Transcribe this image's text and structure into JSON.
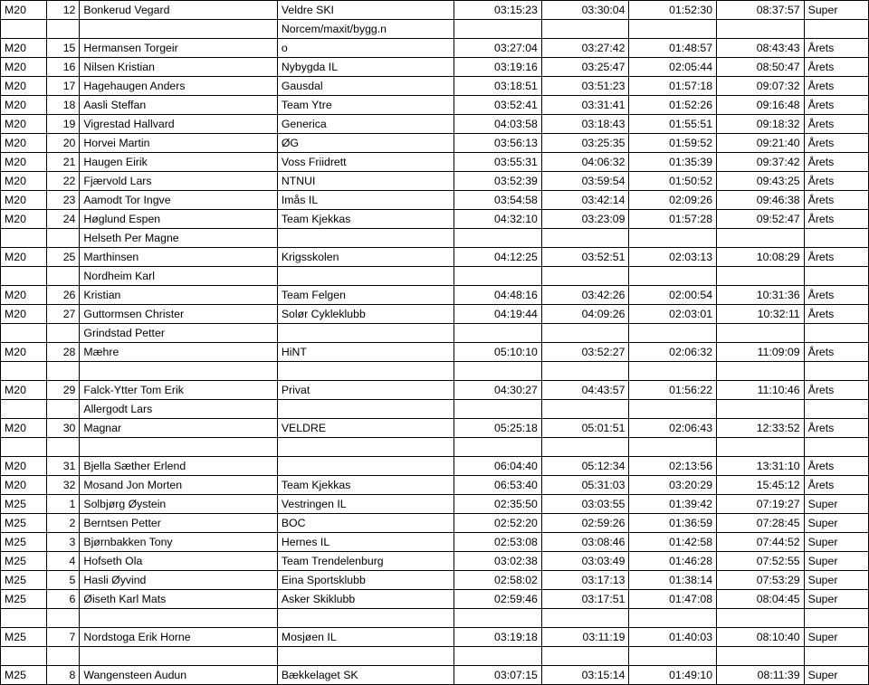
{
  "rows": [
    {
      "cat": "M20",
      "pos": "12",
      "name": "Bonkerud Vegard",
      "team": "Veldre SKI",
      "t1": "03:15:23",
      "t2": "03:30:04",
      "t3": "01:52:30",
      "t4": "08:37:57",
      "grp": "Super"
    },
    {
      "cat": "M20",
      "pos": "15",
      "name": "Hermansen Torgeir",
      "team_two": [
        "Norcem/maxit/bygg.n",
        "o"
      ],
      "t1": "03:27:04",
      "t2": "03:27:42",
      "t3": "01:48:57",
      "t4": "08:43:43",
      "grp": "Årets"
    },
    {
      "cat": "M20",
      "pos": "16",
      "name": "Nilsen Kristian",
      "team": "Nybygda IL",
      "t1": "03:19:16",
      "t2": "03:25:47",
      "t3": "02:05:44",
      "t4": "08:50:47",
      "grp": "Årets"
    },
    {
      "cat": "M20",
      "pos": "17",
      "name": "Hagehaugen Anders",
      "team": "Gausdal",
      "t1": "03:18:51",
      "t2": "03:51:23",
      "t3": "01:57:18",
      "t4": "09:07:32",
      "grp": "Årets"
    },
    {
      "cat": "M20",
      "pos": "18",
      "name": "Aasli Steffan",
      "team": "Team Ytre",
      "t1": "03:52:41",
      "t2": "03:31:41",
      "t3": "01:52:26",
      "t4": "09:16:48",
      "grp": "Årets"
    },
    {
      "cat": "M20",
      "pos": "19",
      "name": "Vigrestad Hallvard",
      "team": "Generica",
      "t1": "04:03:58",
      "t2": "03:18:43",
      "t3": "01:55:51",
      "t4": "09:18:32",
      "grp": "Årets"
    },
    {
      "cat": "M20",
      "pos": "20",
      "name": "Horvei Martin",
      "team": "ØG",
      "t1": "03:56:13",
      "t2": "03:25:35",
      "t3": "01:59:52",
      "t4": "09:21:40",
      "grp": "Årets"
    },
    {
      "cat": "M20",
      "pos": "21",
      "name": "Haugen Eirik",
      "team": "Voss Friidrett",
      "t1": "03:55:31",
      "t2": "04:06:32",
      "t3": "01:35:39",
      "t4": "09:37:42",
      "grp": "Årets"
    },
    {
      "cat": "M20",
      "pos": "22",
      "name": "Fjærvold Lars",
      "team": "NTNUI",
      "t1": "03:52:39",
      "t2": "03:59:54",
      "t3": "01:50:52",
      "t4": "09:43:25",
      "grp": "Årets"
    },
    {
      "cat": "M20",
      "pos": "23",
      "name": "Aamodt Tor Ingve",
      "team": "Imås IL",
      "t1": "03:54:58",
      "t2": "03:42:14",
      "t3": "02:09:26",
      "t4": "09:46:38",
      "grp": "Årets"
    },
    {
      "cat": "M20",
      "pos": "24",
      "name": "Høglund Espen",
      "team": "Team Kjekkas",
      "t1": "04:32:10",
      "t2": "03:23:09",
      "t3": "01:57:28",
      "t4": "09:52:47",
      "grp": "Årets"
    },
    {
      "cat": "M20",
      "pos": "25",
      "name_two": [
        "Helseth Per Magne",
        "Marthinsen"
      ],
      "team": "Krigsskolen",
      "t1": "04:12:25",
      "t2": "03:52:51",
      "t3": "02:03:13",
      "t4": "10:08:29",
      "grp": "Årets"
    },
    {
      "cat": "M20",
      "pos": "26",
      "name_two": [
        "Nordheim Karl",
        "Kristian"
      ],
      "team": "Team Felgen",
      "t1": "04:48:16",
      "t2": "03:42:26",
      "t3": "02:00:54",
      "t4": "10:31:36",
      "grp": "Årets"
    },
    {
      "cat": "M20",
      "pos": "27",
      "name": "Guttormsen Christer",
      "team": "Solør Cykleklubb",
      "t1": "04:19:44",
      "t2": "04:09:26",
      "t3": "02:03:01",
      "t4": "10:32:11",
      "grp": "Årets"
    },
    {
      "cat": "M20",
      "pos": "28",
      "name_two": [
        "Grindstad Petter",
        "Mæhre"
      ],
      "team": "HiNT",
      "t1": "05:10:10",
      "t2": "03:52:27",
      "t3": "02:06:32",
      "t4": "11:09:09",
      "grp": "Årets"
    },
    {
      "spacer": true
    },
    {
      "cat": "M20",
      "pos": "29",
      "name": "Falck-Ytter Tom Erik",
      "team": "Privat",
      "t1": "04:30:27",
      "t2": "04:43:57",
      "t3": "01:56:22",
      "t4": "11:10:46",
      "grp": "Årets"
    },
    {
      "cat": "M20",
      "pos": "30",
      "name_two": [
        "Allergodt Lars",
        "Magnar"
      ],
      "team": "VELDRE",
      "t1": "05:25:18",
      "t2": "05:01:51",
      "t3": "02:06:43",
      "t4": "12:33:52",
      "grp": "Årets"
    },
    {
      "spacer": true
    },
    {
      "cat": "M20",
      "pos": "31",
      "name": "Bjella Sæther Erlend",
      "team": "",
      "t1": "06:04:40",
      "t2": "05:12:34",
      "t3": "02:13:56",
      "t4": "13:31:10",
      "grp": "Årets"
    },
    {
      "cat": "M20",
      "pos": "32",
      "name": "Mosand Jon Morten",
      "team": "Team Kjekkas",
      "t1": "06:53:40",
      "t2": "05:31:03",
      "t3": "03:20:29",
      "t4": "15:45:12",
      "grp": "Årets"
    },
    {
      "cat": "M25",
      "pos": "1",
      "name": "Solbjørg Øystein",
      "team": "Vestringen IL",
      "t1": "02:35:50",
      "t2": "03:03:55",
      "t3": "01:39:42",
      "t4": "07:19:27",
      "grp": "Super"
    },
    {
      "cat": "M25",
      "pos": "2",
      "name": "Berntsen Petter",
      "team": "BOC",
      "t1": "02:52:20",
      "t2": "02:59:26",
      "t3": "01:36:59",
      "t4": "07:28:45",
      "grp": "Super"
    },
    {
      "cat": "M25",
      "pos": "3",
      "name": "Bjørnbakken Tony",
      "team": "Hernes IL",
      "t1": "02:53:08",
      "t2": "03:08:46",
      "t3": "01:42:58",
      "t4": "07:44:52",
      "grp": "Super"
    },
    {
      "cat": "M25",
      "pos": "4",
      "name": "Hofseth Ola",
      "team": "Team Trendelenburg",
      "t1": "03:02:38",
      "t2": "03:03:49",
      "t3": "01:46:28",
      "t4": "07:52:55",
      "grp": "Super"
    },
    {
      "cat": "M25",
      "pos": "5",
      "name": "Hasli Øyvind",
      "team": "Eina Sportsklubb",
      "t1": "02:58:02",
      "t2": "03:17:13",
      "t3": "01:38:14",
      "t4": "07:53:29",
      "grp": "Super"
    },
    {
      "cat": "M25",
      "pos": "6",
      "name": "Øiseth Karl Mats",
      "team": "Asker Skiklubb",
      "t1": "02:59:46",
      "t2": "03:17:51",
      "t3": "01:47:08",
      "t4": "08:04:45",
      "grp": "Super"
    },
    {
      "spacer": true
    },
    {
      "cat": "M25",
      "pos": "7",
      "name": "Nordstoga Erik Horne",
      "team": "Mosjøen IL",
      "t1": "03:19:18",
      "t2": "03:11:19",
      "t3": "01:40:03",
      "t4": "08:10:40",
      "grp": "Super"
    },
    {
      "spacer": true
    },
    {
      "cat": "M25",
      "pos": "8",
      "name": "Wangensteen Audun",
      "team": "Bækkelaget SK",
      "t1": "03:07:15",
      "t2": "03:15:14",
      "t3": "01:49:10",
      "t4": "08:11:39",
      "grp": "Super"
    }
  ]
}
